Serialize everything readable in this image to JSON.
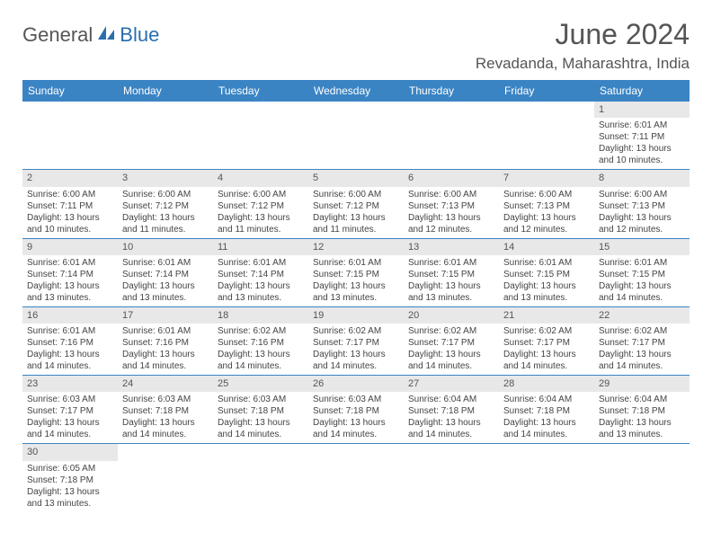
{
  "logo": {
    "part1": "General",
    "part2": "Blue"
  },
  "title": "June 2024",
  "location": "Revadanda, Maharashtra, India",
  "colors": {
    "header_bg": "#3b84c4",
    "header_text": "#ffffff",
    "daynum_bg": "#e8e8e8",
    "border": "#3b84c4",
    "logo_blue": "#2a6db0",
    "logo_gray": "#555555"
  },
  "weekdays": [
    "Sunday",
    "Monday",
    "Tuesday",
    "Wednesday",
    "Thursday",
    "Friday",
    "Saturday"
  ],
  "weeks": [
    [
      null,
      null,
      null,
      null,
      null,
      null,
      {
        "n": "1",
        "sr": "Sunrise: 6:01 AM",
        "ss": "Sunset: 7:11 PM",
        "d1": "Daylight: 13 hours",
        "d2": "and 10 minutes."
      }
    ],
    [
      {
        "n": "2",
        "sr": "Sunrise: 6:00 AM",
        "ss": "Sunset: 7:11 PM",
        "d1": "Daylight: 13 hours",
        "d2": "and 10 minutes."
      },
      {
        "n": "3",
        "sr": "Sunrise: 6:00 AM",
        "ss": "Sunset: 7:12 PM",
        "d1": "Daylight: 13 hours",
        "d2": "and 11 minutes."
      },
      {
        "n": "4",
        "sr": "Sunrise: 6:00 AM",
        "ss": "Sunset: 7:12 PM",
        "d1": "Daylight: 13 hours",
        "d2": "and 11 minutes."
      },
      {
        "n": "5",
        "sr": "Sunrise: 6:00 AM",
        "ss": "Sunset: 7:12 PM",
        "d1": "Daylight: 13 hours",
        "d2": "and 11 minutes."
      },
      {
        "n": "6",
        "sr": "Sunrise: 6:00 AM",
        "ss": "Sunset: 7:13 PM",
        "d1": "Daylight: 13 hours",
        "d2": "and 12 minutes."
      },
      {
        "n": "7",
        "sr": "Sunrise: 6:00 AM",
        "ss": "Sunset: 7:13 PM",
        "d1": "Daylight: 13 hours",
        "d2": "and 12 minutes."
      },
      {
        "n": "8",
        "sr": "Sunrise: 6:00 AM",
        "ss": "Sunset: 7:13 PM",
        "d1": "Daylight: 13 hours",
        "d2": "and 12 minutes."
      }
    ],
    [
      {
        "n": "9",
        "sr": "Sunrise: 6:01 AM",
        "ss": "Sunset: 7:14 PM",
        "d1": "Daylight: 13 hours",
        "d2": "and 13 minutes."
      },
      {
        "n": "10",
        "sr": "Sunrise: 6:01 AM",
        "ss": "Sunset: 7:14 PM",
        "d1": "Daylight: 13 hours",
        "d2": "and 13 minutes."
      },
      {
        "n": "11",
        "sr": "Sunrise: 6:01 AM",
        "ss": "Sunset: 7:14 PM",
        "d1": "Daylight: 13 hours",
        "d2": "and 13 minutes."
      },
      {
        "n": "12",
        "sr": "Sunrise: 6:01 AM",
        "ss": "Sunset: 7:15 PM",
        "d1": "Daylight: 13 hours",
        "d2": "and 13 minutes."
      },
      {
        "n": "13",
        "sr": "Sunrise: 6:01 AM",
        "ss": "Sunset: 7:15 PM",
        "d1": "Daylight: 13 hours",
        "d2": "and 13 minutes."
      },
      {
        "n": "14",
        "sr": "Sunrise: 6:01 AM",
        "ss": "Sunset: 7:15 PM",
        "d1": "Daylight: 13 hours",
        "d2": "and 13 minutes."
      },
      {
        "n": "15",
        "sr": "Sunrise: 6:01 AM",
        "ss": "Sunset: 7:15 PM",
        "d1": "Daylight: 13 hours",
        "d2": "and 14 minutes."
      }
    ],
    [
      {
        "n": "16",
        "sr": "Sunrise: 6:01 AM",
        "ss": "Sunset: 7:16 PM",
        "d1": "Daylight: 13 hours",
        "d2": "and 14 minutes."
      },
      {
        "n": "17",
        "sr": "Sunrise: 6:01 AM",
        "ss": "Sunset: 7:16 PM",
        "d1": "Daylight: 13 hours",
        "d2": "and 14 minutes."
      },
      {
        "n": "18",
        "sr": "Sunrise: 6:02 AM",
        "ss": "Sunset: 7:16 PM",
        "d1": "Daylight: 13 hours",
        "d2": "and 14 minutes."
      },
      {
        "n": "19",
        "sr": "Sunrise: 6:02 AM",
        "ss": "Sunset: 7:17 PM",
        "d1": "Daylight: 13 hours",
        "d2": "and 14 minutes."
      },
      {
        "n": "20",
        "sr": "Sunrise: 6:02 AM",
        "ss": "Sunset: 7:17 PM",
        "d1": "Daylight: 13 hours",
        "d2": "and 14 minutes."
      },
      {
        "n": "21",
        "sr": "Sunrise: 6:02 AM",
        "ss": "Sunset: 7:17 PM",
        "d1": "Daylight: 13 hours",
        "d2": "and 14 minutes."
      },
      {
        "n": "22",
        "sr": "Sunrise: 6:02 AM",
        "ss": "Sunset: 7:17 PM",
        "d1": "Daylight: 13 hours",
        "d2": "and 14 minutes."
      }
    ],
    [
      {
        "n": "23",
        "sr": "Sunrise: 6:03 AM",
        "ss": "Sunset: 7:17 PM",
        "d1": "Daylight: 13 hours",
        "d2": "and 14 minutes."
      },
      {
        "n": "24",
        "sr": "Sunrise: 6:03 AM",
        "ss": "Sunset: 7:18 PM",
        "d1": "Daylight: 13 hours",
        "d2": "and 14 minutes."
      },
      {
        "n": "25",
        "sr": "Sunrise: 6:03 AM",
        "ss": "Sunset: 7:18 PM",
        "d1": "Daylight: 13 hours",
        "d2": "and 14 minutes."
      },
      {
        "n": "26",
        "sr": "Sunrise: 6:03 AM",
        "ss": "Sunset: 7:18 PM",
        "d1": "Daylight: 13 hours",
        "d2": "and 14 minutes."
      },
      {
        "n": "27",
        "sr": "Sunrise: 6:04 AM",
        "ss": "Sunset: 7:18 PM",
        "d1": "Daylight: 13 hours",
        "d2": "and 14 minutes."
      },
      {
        "n": "28",
        "sr": "Sunrise: 6:04 AM",
        "ss": "Sunset: 7:18 PM",
        "d1": "Daylight: 13 hours",
        "d2": "and 14 minutes."
      },
      {
        "n": "29",
        "sr": "Sunrise: 6:04 AM",
        "ss": "Sunset: 7:18 PM",
        "d1": "Daylight: 13 hours",
        "d2": "and 13 minutes."
      }
    ],
    [
      {
        "n": "30",
        "sr": "Sunrise: 6:05 AM",
        "ss": "Sunset: 7:18 PM",
        "d1": "Daylight: 13 hours",
        "d2": "and 13 minutes."
      },
      null,
      null,
      null,
      null,
      null,
      null
    ]
  ]
}
